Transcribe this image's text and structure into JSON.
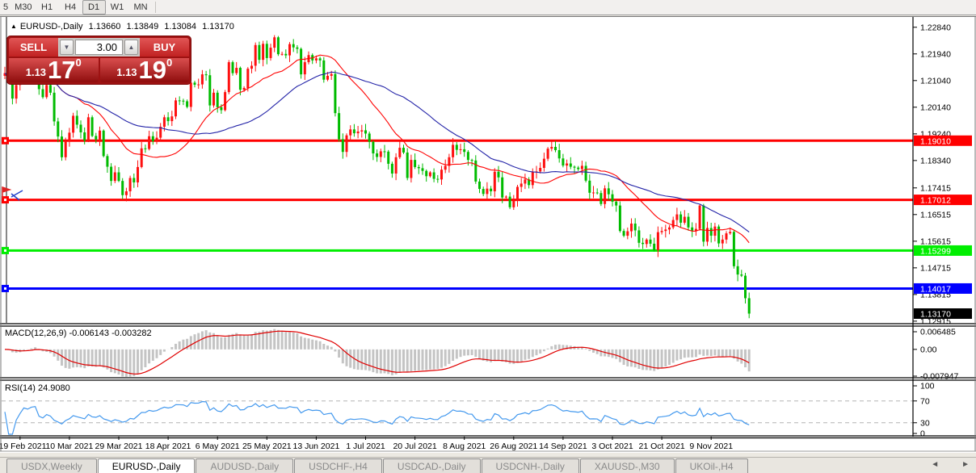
{
  "toolbar": {
    "timeframes": [
      {
        "label": "5",
        "active": false
      },
      {
        "label": "M30",
        "active": false
      },
      {
        "label": "H1",
        "active": false
      },
      {
        "label": "H4",
        "active": false
      },
      {
        "label": "D1",
        "active": true
      },
      {
        "label": "W1",
        "active": false
      },
      {
        "label": "MN",
        "active": false
      }
    ]
  },
  "header": {
    "collapse_icon": "▲",
    "symbol": "EURUSD-,Daily",
    "open": "1.13660",
    "high": "1.13849",
    "low": "1.13084",
    "close": "1.13170"
  },
  "trade_panel": {
    "sell_label": "SELL",
    "buy_label": "BUY",
    "volume": "3.00",
    "spin_down_icon": "▼",
    "spin_up_icon": "▲",
    "sell_price": {
      "small": "1.13",
      "big": "17",
      "sup": "0"
    },
    "buy_price": {
      "small": "1.13",
      "big": "19",
      "sup": "0"
    }
  },
  "indicator_labels": {
    "macd_name": "MACD(12,26,9)",
    "macd_value": "-0.006143",
    "macd_signal_value": "-0.003282",
    "rsi_name": "RSI(14)",
    "rsi_value": "24.9080"
  },
  "tabbar": {
    "tabs": [
      {
        "label": "USDX,Weekly",
        "active": false
      },
      {
        "label": "EURUSD-,Daily",
        "active": true
      },
      {
        "label": "AUDUSD-,Daily",
        "active": false
      },
      {
        "label": "USDCHF-,H4",
        "active": false
      },
      {
        "label": "USDCAD-,Daily",
        "active": false
      },
      {
        "label": "USDCNH-,Daily",
        "active": false
      },
      {
        "label": "XAUUSD-,M30",
        "active": false
      },
      {
        "label": "UKOil-,H4",
        "active": false
      }
    ],
    "scroll_left_icon": "◄",
    "scroll_right_icon": "►"
  },
  "chart_data": {
    "type": "candlestick",
    "symbol": "EURUSD-",
    "timeframe": "Daily",
    "colors": {
      "up": "#fe1010",
      "down": "#00bb00",
      "ma_fast": "#ff0000",
      "ma_slow": "#2424a8",
      "macd_hist": "#c4c4c4",
      "macd_signal": "#e00000",
      "rsi_line": "#4499ee",
      "level_red": "#ff0000",
      "level_green": "#00ee00",
      "level_blue": "#0000ff",
      "current_badge_bg": "#000000"
    },
    "y_axis": {
      "price_min": 1.12857,
      "price_max": 1.23188,
      "ticks": [
        1.2284,
        1.2194,
        1.2104,
        1.2014,
        1.1924,
        1.1834,
        1.17415,
        1.16515,
        1.15615,
        1.14715,
        1.13815,
        1.12915
      ]
    },
    "x_axis": {
      "labels": [
        "19 Feb 2021",
        "10 Mar 2021",
        "29 Mar 2021",
        "18 Apr 2021",
        "6 May 2021",
        "25 May 2021",
        "13 Jun 2021",
        "1 Jul 2021",
        "20 Jul 2021",
        "8 Aug 2021",
        "26 Aug 2021",
        "14 Sep 2021",
        "3 Oct 2021",
        "21 Oct 2021",
        "9 Nov 2021"
      ],
      "first_label_index": 4,
      "bars_per_label": 13
    },
    "hlines": [
      {
        "price": 1.1901,
        "label": "1.19010",
        "color": "#ff0000",
        "text": "#ffffff"
      },
      {
        "price": 1.17012,
        "label": "1.17012",
        "color": "#ff0000",
        "text": "#ffffff"
      },
      {
        "price": 1.15299,
        "label": "1.15299",
        "color": "#00ee00",
        "text": "#ffffff"
      },
      {
        "price": 1.14017,
        "label": "1.14017",
        "color": "#0000ff",
        "text": "#ffffff"
      }
    ],
    "current_price": {
      "price": 1.1317,
      "label": "1.13170"
    },
    "ma": {
      "fast_period": 20,
      "slow_period": 42
    },
    "indicators": [
      {
        "name": "MACD",
        "params": "12,26,9",
        "value": -0.006143,
        "signal": -0.003282,
        "axis_max": 0.006485,
        "axis_zero": 0.0,
        "axis_min": -0.007947,
        "axis_labels": [
          "0.006485",
          "0.00",
          "-0.007947"
        ]
      },
      {
        "name": "RSI",
        "params": "14",
        "value": 24.908,
        "levels": [
          70,
          30
        ],
        "axis_labels": [
          "100",
          "70",
          "30",
          "0"
        ]
      }
    ],
    "first_open": 1.212,
    "closes": [
      1.2129,
      1.2105,
      1.2043,
      1.2089,
      1.2119,
      1.2158,
      1.215,
      1.2168,
      1.2175,
      1.2075,
      1.2048,
      1.2089,
      1.2063,
      1.1966,
      1.1915,
      1.1845,
      1.1899,
      1.1928,
      1.1985,
      1.1955,
      1.1929,
      1.1901,
      1.198,
      1.1917,
      1.1905,
      1.1935,
      1.1849,
      1.1813,
      1.1765,
      1.1794,
      1.1765,
      1.1717,
      1.173,
      1.1775,
      1.176,
      1.1812,
      1.1875,
      1.1873,
      1.1916,
      1.1899,
      1.1911,
      1.1948,
      1.198,
      1.1967,
      1.1983,
      1.2037,
      1.2036,
      1.2034,
      1.2015,
      1.2097,
      1.209,
      1.2091,
      1.2125,
      1.2122,
      1.202,
      1.2063,
      1.2014,
      1.2004,
      1.2065,
      1.2166,
      1.2129,
      1.2147,
      1.2073,
      1.2079,
      1.2144,
      1.2154,
      1.2224,
      1.2174,
      1.2228,
      1.218,
      1.2215,
      1.225,
      1.2193,
      1.2194,
      1.2189,
      1.2227,
      1.2216,
      1.2211,
      1.2125,
      1.2166,
      1.219,
      1.2172,
      1.2179,
      1.2172,
      1.2107,
      1.212,
      1.2126,
      1.1994,
      1.1906,
      1.1863,
      1.1919,
      1.1939,
      1.1926,
      1.1932,
      1.1936,
      1.1925,
      1.1897,
      1.1858,
      1.1846,
      1.1865,
      1.1864,
      1.1823,
      1.179,
      1.1845,
      1.1877,
      1.1861,
      1.1775,
      1.1836,
      1.1812,
      1.1808,
      1.1799,
      1.1781,
      1.1794,
      1.1772,
      1.177,
      1.1803,
      1.1816,
      1.1845,
      1.1887,
      1.187,
      1.1872,
      1.1863,
      1.1836,
      1.1834,
      1.1763,
      1.1738,
      1.1721,
      1.1739,
      1.173,
      1.1796,
      1.1777,
      1.1709,
      1.1712,
      1.1676,
      1.1698,
      1.1745,
      1.1756,
      1.177,
      1.1751,
      1.1795,
      1.1797,
      1.1809,
      1.184,
      1.1874,
      1.188,
      1.1869,
      1.1841,
      1.1817,
      1.1824,
      1.1813,
      1.181,
      1.1805,
      1.1816,
      1.1766,
      1.1725,
      1.1726,
      1.1724,
      1.1687,
      1.174,
      1.172,
      1.1695,
      1.1682,
      1.1596,
      1.158,
      1.1595,
      1.1621,
      1.1598,
      1.1556,
      1.1552,
      1.1567,
      1.1553,
      1.1531,
      1.1592,
      1.1596,
      1.1601,
      1.1608,
      1.1633,
      1.1652,
      1.1624,
      1.1644,
      1.1608,
      1.1597,
      1.1603,
      1.1682,
      1.156,
      1.1606,
      1.158,
      1.1611,
      1.1554,
      1.1567,
      1.1588,
      1.1593,
      1.1477,
      1.1449,
      1.1445,
      1.1369,
      1.1317
    ]
  }
}
